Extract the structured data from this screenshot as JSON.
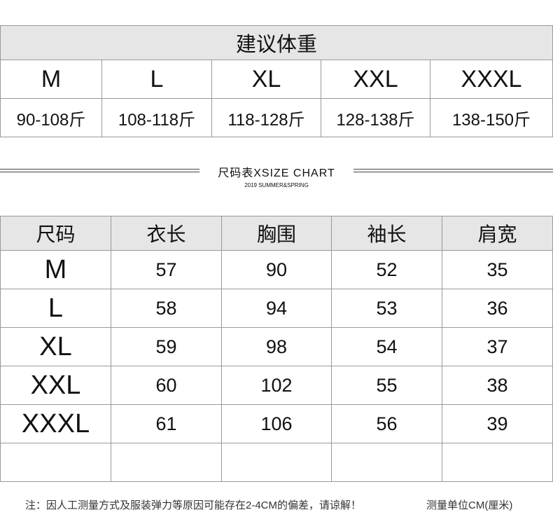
{
  "weight_table": {
    "title": "建议体重",
    "sizes": [
      "M",
      "L",
      "XL",
      "XXL",
      "XXXL"
    ],
    "weights": [
      "90-108斤",
      "108-118斤",
      "118-128斤",
      "128-138斤",
      "138-150斤"
    ]
  },
  "chart_header": {
    "title": "尺码表XSIZE CHART",
    "subtitle": "2019 SUMMER&SPRING"
  },
  "size_table": {
    "headers": [
      "尺码",
      "衣长",
      "胸围",
      "袖长",
      "肩宽"
    ],
    "rows": [
      [
        "M",
        "57",
        "90",
        "52",
        "35"
      ],
      [
        "L",
        "58",
        "94",
        "53",
        "36"
      ],
      [
        "XL",
        "59",
        "98",
        "54",
        "37"
      ],
      [
        "XXL",
        "60",
        "102",
        "55",
        "38"
      ],
      [
        "XXXL",
        "61",
        "106",
        "56",
        "39"
      ],
      [
        "",
        "",
        "",
        "",
        ""
      ]
    ]
  },
  "footer": {
    "note": "注：因人工测量方式及服装弹力等原因可能存在2-4CM的偏差，请谅解！",
    "unit": "测量单位CM(厘米)"
  }
}
